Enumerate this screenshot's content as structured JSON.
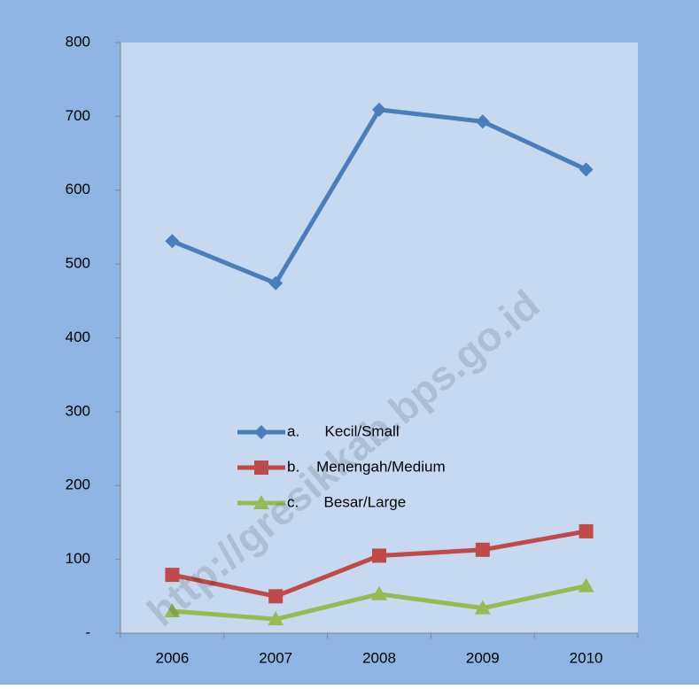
{
  "chart_data": {
    "type": "line",
    "categories": [
      "2006",
      "2007",
      "2008",
      "2009",
      "2010"
    ],
    "series": [
      {
        "name": "a.      Kecil/Small",
        "color": "#4a7ebb",
        "marker": "diamond",
        "values": [
          531,
          474,
          709,
          693,
          628
        ]
      },
      {
        "name": "b.    Menengah/Medium",
        "color": "#be4b48",
        "marker": "square",
        "values": [
          79,
          50,
          105,
          113,
          138
        ]
      },
      {
        "name": "c.      Besar/Large",
        "color": "#98b954",
        "marker": "triangle",
        "values": [
          30,
          19,
          53,
          34,
          64
        ]
      }
    ],
    "ylim": [
      0,
      800
    ],
    "yticks": [
      {
        "value": 0,
        "label": "-"
      },
      100,
      200,
      300,
      400,
      500,
      600,
      700,
      800
    ],
    "grid": false,
    "watermark": "http://gresikkab.bps.go.id"
  }
}
